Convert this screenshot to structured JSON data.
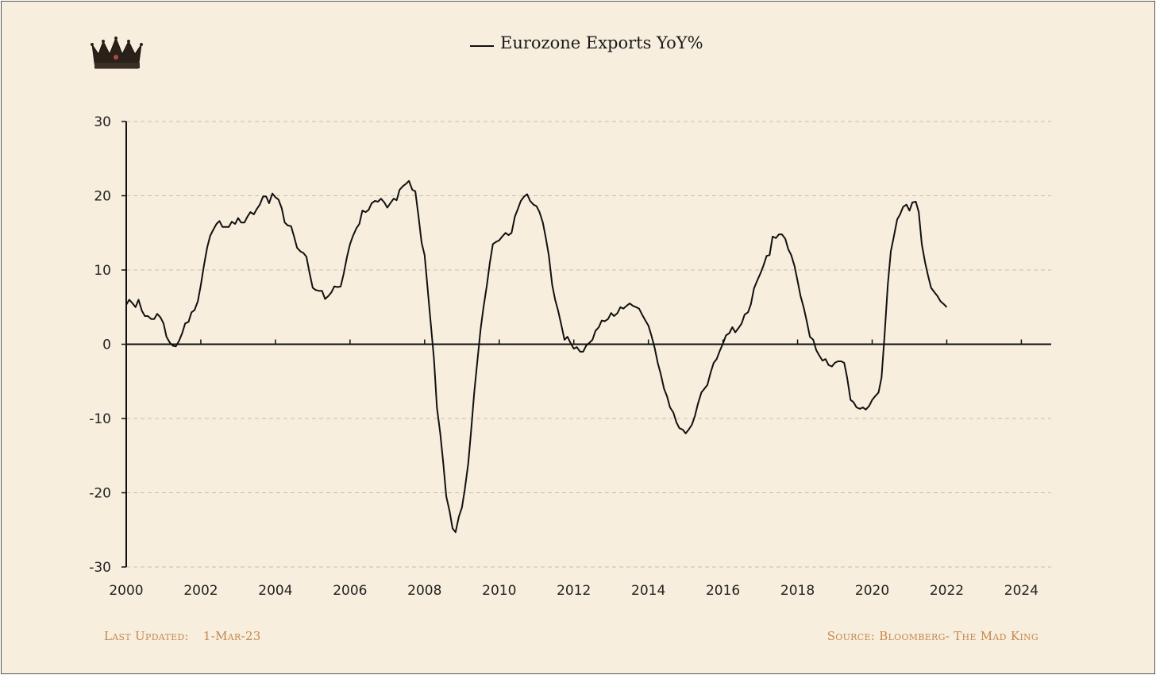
{
  "chart_data": {
    "type": "line",
    "legend": [
      "Eurozone Exports YoY%"
    ],
    "xlabel": "",
    "ylabel": "",
    "xlim": [
      2000,
      2024.8
    ],
    "ylim": [
      -30,
      30
    ],
    "xticks": [
      "2000",
      "2002",
      "2004",
      "2006",
      "2008",
      "2010",
      "2012",
      "2014",
      "2016",
      "2018",
      "2020",
      "2022",
      "2024"
    ],
    "yticks": [
      "30",
      "20",
      "10",
      "0",
      "-10",
      "-20",
      "-30"
    ],
    "grid": "horizontal dashed",
    "legend_position": "top-center",
    "series": [
      {
        "name": "Eurozone Exports YoY%",
        "color": "#111111",
        "x": [
          2000.0,
          2000.08,
          2000.17,
          2000.25,
          2000.33,
          2000.42,
          2000.5,
          2000.58,
          2000.67,
          2000.75,
          2000.83,
          2000.92,
          2001.0,
          2001.08,
          2001.17,
          2001.25,
          2001.33,
          2001.42,
          2001.5,
          2001.58,
          2001.67,
          2001.75,
          2001.83,
          2001.92,
          2002.0,
          2002.08,
          2002.17,
          2002.25,
          2002.33,
          2002.42,
          2002.5,
          2002.58,
          2002.67,
          2002.75,
          2002.83,
          2002.92,
          2003.0,
          2003.08,
          2003.17,
          2003.25,
          2003.33,
          2003.42,
          2003.5,
          2003.58,
          2003.67,
          2003.75,
          2003.83,
          2003.92,
          2004.0,
          2004.08,
          2004.17,
          2004.25,
          2004.33,
          2004.42,
          2004.5,
          2004.58,
          2004.67,
          2004.75,
          2004.83,
          2004.92,
          2005.0,
          2005.08,
          2005.17,
          2005.25,
          2005.33,
          2005.42,
          2005.5,
          2005.58,
          2005.67,
          2005.75,
          2005.83,
          2005.92,
          2006.0,
          2006.08,
          2006.17,
          2006.25,
          2006.33,
          2006.42,
          2006.5,
          2006.58,
          2006.67,
          2006.75,
          2006.83,
          2006.92,
          2007.0,
          2007.08,
          2007.17,
          2007.25,
          2007.33,
          2007.42,
          2007.5,
          2007.58,
          2007.67,
          2007.75,
          2007.83,
          2007.92,
          2008.0,
          2008.08,
          2008.17,
          2008.25,
          2008.33,
          2008.42,
          2008.5,
          2008.58,
          2008.67,
          2008.75,
          2008.83,
          2008.92,
          2009.0,
          2009.08,
          2009.17,
          2009.25,
          2009.33,
          2009.42,
          2009.5,
          2009.58,
          2009.67,
          2009.75,
          2009.83,
          2009.92,
          2010.0,
          2010.08,
          2010.17,
          2010.25,
          2010.33,
          2010.42,
          2010.5,
          2010.58,
          2010.67,
          2010.75,
          2010.83,
          2010.92,
          2011.0,
          2011.08,
          2011.17,
          2011.25,
          2011.33,
          2011.42,
          2011.5,
          2011.58,
          2011.67,
          2011.75,
          2011.83,
          2011.92,
          2012.0,
          2012.08,
          2012.17,
          2012.25,
          2012.33,
          2012.42,
          2012.5,
          2012.58,
          2012.67,
          2012.75,
          2012.83,
          2012.92,
          2013.0,
          2013.08,
          2013.17,
          2013.25,
          2013.33,
          2013.42,
          2013.5,
          2013.58,
          2013.67,
          2013.75,
          2013.83,
          2013.92,
          2014.0,
          2014.08,
          2014.17,
          2014.25,
          2014.33,
          2014.42,
          2014.5,
          2014.58,
          2014.67,
          2014.75,
          2014.83,
          2014.92,
          2015.0,
          2015.08,
          2015.17,
          2015.25,
          2015.33,
          2015.42,
          2015.5,
          2015.58,
          2015.67,
          2015.75,
          2015.83,
          2015.92,
          2016.0,
          2016.08,
          2016.17,
          2016.25,
          2016.33,
          2016.42,
          2016.5,
          2016.58,
          2016.67,
          2016.75,
          2016.83,
          2016.92,
          2017.0,
          2017.08,
          2017.17,
          2017.25,
          2017.33,
          2017.42,
          2017.5,
          2017.58,
          2017.67,
          2017.75,
          2017.83,
          2017.92,
          2018.0,
          2018.08,
          2018.17,
          2018.25,
          2018.33,
          2018.42,
          2018.5,
          2018.58,
          2018.67,
          2018.75,
          2018.83,
          2018.92,
          2019.0,
          2019.08,
          2019.17,
          2019.25,
          2019.33,
          2019.42,
          2019.5,
          2019.58,
          2019.67,
          2019.75,
          2019.83,
          2019.92,
          2020.0,
          2020.08,
          2020.17,
          2020.25,
          2020.33,
          2020.42,
          2020.5,
          2020.58,
          2020.67,
          2020.75,
          2020.83,
          2020.92,
          2021.0,
          2021.08,
          2021.17,
          2021.25,
          2021.33,
          2021.42,
          2021.5,
          2021.58,
          2021.67,
          2021.75,
          2021.83,
          2021.92,
          2022.0
        ],
        "y": [
          5.3,
          6.0,
          5.5,
          5.0,
          6.0,
          4.5,
          3.8,
          3.8,
          3.4,
          3.4,
          4.1,
          3.6,
          2.8,
          1.0,
          0.2,
          -0.2,
          -0.3,
          0.5,
          1.5,
          2.8,
          3.0,
          4.3,
          4.6,
          5.8,
          8.0,
          10.5,
          13.0,
          14.6,
          15.4,
          16.2,
          16.6,
          15.8,
          15.8,
          15.8,
          16.5,
          16.2,
          17.0,
          16.4,
          16.4,
          17.2,
          17.8,
          17.5,
          18.2,
          18.8,
          19.9,
          19.9,
          19.0,
          20.3,
          19.8,
          19.5,
          18.3,
          16.4,
          16.0,
          15.9,
          14.5,
          13.0,
          12.5,
          12.3,
          11.8,
          9.5,
          7.6,
          7.3,
          7.2,
          7.2,
          6.1,
          6.5,
          7.0,
          7.8,
          7.7,
          7.8,
          9.5,
          11.8,
          13.5,
          14.6,
          15.6,
          16.2,
          18.0,
          17.8,
          18.1,
          19.0,
          19.3,
          19.2,
          19.6,
          19.1,
          18.4,
          19.0,
          19.6,
          19.4,
          20.8,
          21.3,
          21.6,
          22.0,
          20.8,
          20.6,
          17.5,
          13.7,
          12.0,
          7.5,
          2.5,
          -2.0,
          -8.5,
          -12.0,
          -16.0,
          -20.5,
          -22.5,
          -24.8,
          -25.3,
          -23.2,
          -22.0,
          -19.5,
          -16.0,
          -11.5,
          -6.5,
          -2.0,
          2.0,
          5.0,
          8.0,
          11.0,
          13.5,
          13.8,
          14.0,
          14.5,
          15.0,
          14.7,
          15.0,
          17.2,
          18.2,
          19.3,
          19.9,
          20.2,
          19.3,
          18.8,
          18.6,
          17.8,
          16.4,
          14.3,
          12.0,
          8.0,
          6.0,
          4.5,
          2.5,
          0.6,
          1.0,
          0.1,
          -0.6,
          -0.4,
          -1.0,
          -1.0,
          -0.2,
          0.2,
          0.6,
          1.8,
          2.3,
          3.2,
          3.1,
          3.4,
          4.2,
          3.8,
          4.2,
          5.0,
          4.8,
          5.2,
          5.5,
          5.2,
          5.0,
          4.8,
          4.0,
          3.2,
          2.5,
          1.2,
          -0.5,
          -2.5,
          -4.0,
          -6.0,
          -7.0,
          -8.5,
          -9.2,
          -10.5,
          -11.3,
          -11.5,
          -12.0,
          -11.5,
          -10.8,
          -9.6,
          -8.0,
          -6.5,
          -6.0,
          -5.5,
          -3.8,
          -2.5,
          -2.0,
          -0.8,
          0.1,
          1.2,
          1.5,
          2.3,
          1.6,
          2.2,
          2.8,
          4.0,
          4.3,
          5.4,
          7.5,
          8.6,
          9.5,
          10.5,
          11.9,
          12.0,
          14.5,
          14.3,
          14.8,
          14.8,
          14.2,
          12.8,
          12.0,
          10.5,
          8.5,
          6.5,
          4.8,
          3.0,
          1.0,
          0.6,
          -0.8,
          -1.5,
          -2.2,
          -2.0,
          -2.8,
          -3.0,
          -2.5,
          -2.3,
          -2.3,
          -2.5,
          -4.5,
          -7.5,
          -7.8,
          -8.5,
          -8.7,
          -8.5,
          -8.8,
          -8.3,
          -7.5,
          -7.0,
          -6.5,
          -4.5,
          1.0,
          8.0,
          12.5,
          14.5,
          16.8,
          17.5,
          18.5,
          18.8,
          18.0,
          19.1,
          19.2,
          17.8,
          13.5,
          11.0,
          9.2,
          7.6,
          7.0,
          6.5,
          5.8,
          5.4,
          5.0
        ]
      }
    ]
  },
  "footer": {
    "updated_label": "Last Updated:",
    "updated_value": "1-Mar-23",
    "source": "Source: Bloomberg- The Mad King"
  },
  "logo": "crown-icon"
}
